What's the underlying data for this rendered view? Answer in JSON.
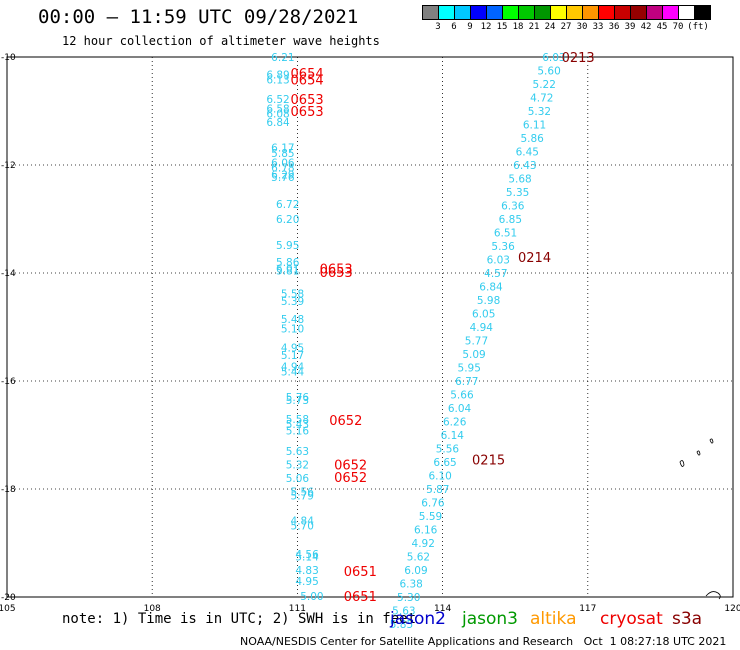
{
  "header": {
    "title": "00:00 – 11:59 UTC 09/28/2021",
    "subtitle": "12 hour collection of altimeter wave heights"
  },
  "colorbar": {
    "colors": [
      "#808080",
      "#00ffff",
      "#00c8ff",
      "#0000ff",
      "#0064ff",
      "#00ff00",
      "#00c800",
      "#009600",
      "#ffff00",
      "#ffc800",
      "#ff9600",
      "#ff0000",
      "#c80000",
      "#960000",
      "#c00080",
      "#ff00ff",
      "#ffffff",
      "#000000"
    ],
    "labels": [
      "3",
      "6",
      "9",
      "12",
      "15",
      "18",
      "21",
      "24",
      "27",
      "30",
      "33",
      "36",
      "39",
      "42",
      "45",
      "70",
      "(ft)"
    ]
  },
  "map": {
    "lon_ticks": [
      "105",
      "108",
      "111",
      "114",
      "117",
      "120"
    ],
    "lat_ticks": [
      "-10",
      "-12",
      "-14",
      "-16",
      "-18",
      "-20"
    ],
    "colors": {
      "light": "#33ccee",
      "red": "#ee0000",
      "darkred": "#880000"
    },
    "swh_track1": [
      {
        "lon": 110.7,
        "lat": -10.0,
        "v": "6.21"
      },
      {
        "lon": 110.6,
        "lat": -10.32,
        "v": "6.89"
      },
      {
        "lon": 110.6,
        "lat": -10.42,
        "v": "6.13"
      },
      {
        "lon": 110.6,
        "lat": -10.78,
        "v": "6.52"
      },
      {
        "lon": 110.6,
        "lat": -10.95,
        "v": "6.58"
      },
      {
        "lon": 110.6,
        "lat": -11.05,
        "v": "6.08"
      },
      {
        "lon": 110.6,
        "lat": -11.2,
        "v": "6.84"
      },
      {
        "lon": 110.7,
        "lat": -11.68,
        "v": "6.17"
      },
      {
        "lon": 110.7,
        "lat": -11.78,
        "v": "5.85"
      },
      {
        "lon": 110.7,
        "lat": -11.95,
        "v": "6.06"
      },
      {
        "lon": 110.7,
        "lat": -12.05,
        "v": "6.78"
      },
      {
        "lon": 110.7,
        "lat": -12.18,
        "v": "6.29"
      },
      {
        "lon": 110.7,
        "lat": -12.22,
        "v": "5.76"
      },
      {
        "lon": 110.8,
        "lat": -12.72,
        "v": "6.72"
      },
      {
        "lon": 110.8,
        "lat": -13.0,
        "v": "6.20"
      },
      {
        "lon": 110.8,
        "lat": -13.48,
        "v": "5.95"
      },
      {
        "lon": 110.8,
        "lat": -13.8,
        "v": "5.86"
      },
      {
        "lon": 110.8,
        "lat": -13.92,
        "v": "6.01"
      },
      {
        "lon": 110.8,
        "lat": -13.95,
        "v": "5.81"
      },
      {
        "lon": 110.9,
        "lat": -14.38,
        "v": "5.58"
      },
      {
        "lon": 110.9,
        "lat": -14.52,
        "v": "5.39"
      },
      {
        "lon": 110.9,
        "lat": -14.85,
        "v": "5.48"
      },
      {
        "lon": 110.9,
        "lat": -15.03,
        "v": "5.10"
      },
      {
        "lon": 110.9,
        "lat": -15.38,
        "v": "4.95"
      },
      {
        "lon": 110.9,
        "lat": -15.52,
        "v": "5.17"
      },
      {
        "lon": 110.9,
        "lat": -15.73,
        "v": "4.94"
      },
      {
        "lon": 110.9,
        "lat": -15.82,
        "v": "5.44"
      },
      {
        "lon": 111.0,
        "lat": -16.3,
        "v": "5.76"
      },
      {
        "lon": 111.0,
        "lat": -16.35,
        "v": "5.73"
      },
      {
        "lon": 111.0,
        "lat": -16.7,
        "v": "5.58"
      },
      {
        "lon": 111.0,
        "lat": -16.8,
        "v": "5.43"
      },
      {
        "lon": 111.0,
        "lat": -16.92,
        "v": "5.16"
      },
      {
        "lon": 111.0,
        "lat": -17.3,
        "v": "5.63"
      },
      {
        "lon": 111.0,
        "lat": -17.55,
        "v": "5.32"
      },
      {
        "lon": 111.0,
        "lat": -17.8,
        "v": "5.06"
      },
      {
        "lon": 111.1,
        "lat": -18.05,
        "v": "5.56"
      },
      {
        "lon": 111.1,
        "lat": -18.12,
        "v": "5.79"
      },
      {
        "lon": 111.1,
        "lat": -18.58,
        "v": "4.84"
      },
      {
        "lon": 111.1,
        "lat": -18.68,
        "v": "5.70"
      },
      {
        "lon": 111.2,
        "lat": -19.2,
        "v": "4.56"
      },
      {
        "lon": 111.2,
        "lat": -19.25,
        "v": "5.14"
      },
      {
        "lon": 111.2,
        "lat": -19.5,
        "v": "4.83"
      },
      {
        "lon": 111.2,
        "lat": -19.7,
        "v": "4.95"
      },
      {
        "lon": 111.3,
        "lat": -19.98,
        "v": "5.00"
      }
    ],
    "swh_track2": [
      {
        "lon": 116.3,
        "lat": -10.0,
        "v": "6.03"
      },
      {
        "lon": 116.2,
        "lat": -10.25,
        "v": "5.60"
      },
      {
        "lon": 116.1,
        "lat": -10.5,
        "v": "5.22"
      },
      {
        "lon": 116.05,
        "lat": -10.75,
        "v": "4.72"
      },
      {
        "lon": 116.0,
        "lat": -11.0,
        "v": "5.32"
      },
      {
        "lon": 115.9,
        "lat": -11.25,
        "v": "6.11"
      },
      {
        "lon": 115.85,
        "lat": -11.5,
        "v": "5.86"
      },
      {
        "lon": 115.75,
        "lat": -11.75,
        "v": "6.45"
      },
      {
        "lon": 115.7,
        "lat": -12.0,
        "v": "6.43"
      },
      {
        "lon": 115.6,
        "lat": -12.25,
        "v": "5.68"
      },
      {
        "lon": 115.55,
        "lat": -12.5,
        "v": "5.35"
      },
      {
        "lon": 115.45,
        "lat": -12.75,
        "v": "6.36"
      },
      {
        "lon": 115.4,
        "lat": -13.0,
        "v": "6.85"
      },
      {
        "lon": 115.3,
        "lat": -13.25,
        "v": "6.51"
      },
      {
        "lon": 115.25,
        "lat": -13.5,
        "v": "5.36"
      },
      {
        "lon": 115.15,
        "lat": -13.75,
        "v": "6.03"
      },
      {
        "lon": 115.1,
        "lat": -14.0,
        "v": "4.57"
      },
      {
        "lon": 115.0,
        "lat": -14.25,
        "v": "6.84"
      },
      {
        "lon": 114.95,
        "lat": -14.5,
        "v": "5.98"
      },
      {
        "lon": 114.85,
        "lat": -14.75,
        "v": "6.05"
      },
      {
        "lon": 114.8,
        "lat": -15.0,
        "v": "4.94"
      },
      {
        "lon": 114.7,
        "lat": -15.25,
        "v": "5.77"
      },
      {
        "lon": 114.65,
        "lat": -15.5,
        "v": "5.09"
      },
      {
        "lon": 114.55,
        "lat": -15.75,
        "v": "5.95"
      },
      {
        "lon": 114.5,
        "lat": -16.0,
        "v": "6.77"
      },
      {
        "lon": 114.4,
        "lat": -16.25,
        "v": "5.66"
      },
      {
        "lon": 114.35,
        "lat": -16.5,
        "v": "6.04"
      },
      {
        "lon": 114.25,
        "lat": -16.75,
        "v": "6.26"
      },
      {
        "lon": 114.2,
        "lat": -17.0,
        "v": "6.14"
      },
      {
        "lon": 114.1,
        "lat": -17.25,
        "v": "5.56"
      },
      {
        "lon": 114.05,
        "lat": -17.5,
        "v": "6.65"
      },
      {
        "lon": 113.95,
        "lat": -17.75,
        "v": "6.10"
      },
      {
        "lon": 113.9,
        "lat": -18.0,
        "v": "5.87"
      },
      {
        "lon": 113.8,
        "lat": -18.25,
        "v": "6.76"
      },
      {
        "lon": 113.75,
        "lat": -18.5,
        "v": "5.59"
      },
      {
        "lon": 113.65,
        "lat": -18.75,
        "v": "6.16"
      },
      {
        "lon": 113.6,
        "lat": -19.0,
        "v": "4.92"
      },
      {
        "lon": 113.5,
        "lat": -19.25,
        "v": "5.62"
      },
      {
        "lon": 113.45,
        "lat": -19.5,
        "v": "6.09"
      },
      {
        "lon": 113.35,
        "lat": -19.75,
        "v": "6.38"
      },
      {
        "lon": 113.3,
        "lat": -20.0,
        "v": "5.30"
      },
      {
        "lon": 113.2,
        "lat": -20.25,
        "v": "5.63"
      },
      {
        "lon": 113.15,
        "lat": -20.5,
        "v": "5.85"
      }
    ],
    "time_labels": [
      {
        "lon": 116.8,
        "lat": -10.0,
        "v": "0213",
        "c": "darkred"
      },
      {
        "lon": 115.9,
        "lat": -13.7,
        "v": "0214",
        "c": "darkred"
      },
      {
        "lon": 114.95,
        "lat": -17.45,
        "v": "0215",
        "c": "darkred"
      },
      {
        "lon": 111.2,
        "lat": -10.3,
        "v": "0654",
        "c": "red"
      },
      {
        "lon": 111.2,
        "lat": -10.42,
        "v": "0654",
        "c": "red"
      },
      {
        "lon": 111.2,
        "lat": -10.78,
        "v": "0653",
        "c": "red"
      },
      {
        "lon": 111.2,
        "lat": -11.0,
        "v": "0653",
        "c": "red"
      },
      {
        "lon": 111.8,
        "lat": -13.92,
        "v": "0653",
        "c": "red"
      },
      {
        "lon": 111.8,
        "lat": -13.98,
        "v": "0653",
        "c": "red"
      },
      {
        "lon": 112.0,
        "lat": -16.72,
        "v": "0652",
        "c": "red"
      },
      {
        "lon": 112.1,
        "lat": -17.55,
        "v": "0652",
        "c": "red"
      },
      {
        "lon": 112.1,
        "lat": -17.78,
        "v": "0652",
        "c": "red"
      },
      {
        "lon": 112.3,
        "lat": -19.52,
        "v": "0651",
        "c": "red"
      },
      {
        "lon": 112.3,
        "lat": -19.98,
        "v": "0651",
        "c": "red"
      }
    ]
  },
  "footer": {
    "note": "note: 1) Time is in UTC; 2) SWH is in feet",
    "legend": [
      {
        "name": "jason2",
        "color": "#0000cc"
      },
      {
        "name": "jason3",
        "color": "#009900"
      },
      {
        "name": "altika",
        "color": "#ff9900"
      },
      {
        "name": "cryosat",
        "color": "#ee0000"
      },
      {
        "name": "s3a",
        "color": "#880000"
      }
    ],
    "credit": "NOAA/NESDIS Center for Satellite Applications and Research   Oct  1 08:27:18 UTC 2021"
  }
}
